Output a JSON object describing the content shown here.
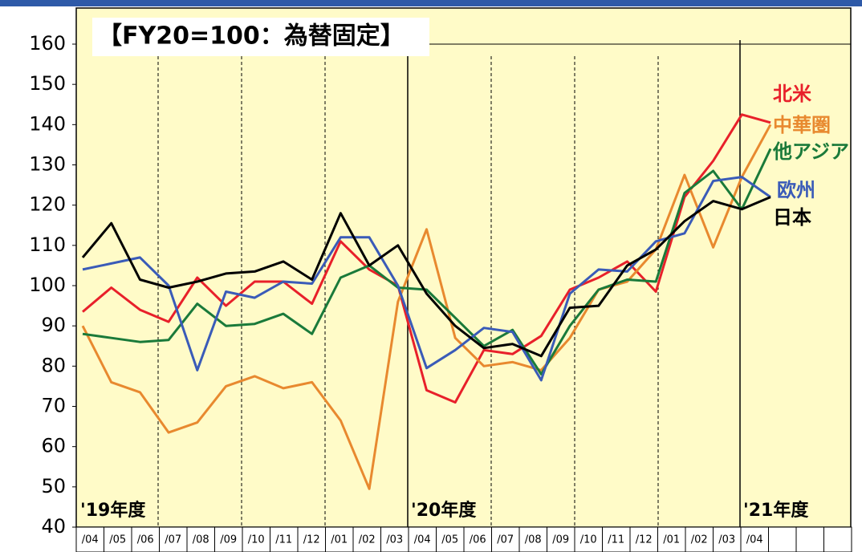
{
  "chart_data": {
    "type": "line",
    "title": "【FY20=100：為替固定】",
    "annotations": [
      "'19年度",
      "'20年度",
      "'21年度"
    ],
    "categories": [
      "/04",
      "/05",
      "/06",
      "/07",
      "/08",
      "/09",
      "/10",
      "/11",
      "/12",
      "/01",
      "/02",
      "/03",
      "/04",
      "/05",
      "/06",
      "/07",
      "/08",
      "/09",
      "/10",
      "/11",
      "/12",
      "/01",
      "/02",
      "/03",
      "/04"
    ],
    "series": [
      {
        "name": "北米",
        "color": "#e8202a",
        "values": [
          93.5,
          99.5,
          94,
          91,
          102,
          95,
          101,
          101,
          95.5,
          111,
          104,
          100,
          74,
          71,
          84,
          83,
          87.5,
          99,
          102,
          106,
          98.5,
          122,
          131,
          142.5,
          140.5
        ]
      },
      {
        "name": "中華圏",
        "color": "#e8892f",
        "values": [
          90,
          76,
          73.5,
          63.5,
          66,
          75,
          77.5,
          74.5,
          76,
          66.5,
          49.5,
          96,
          114,
          87,
          80,
          81,
          79,
          87,
          99,
          101,
          109,
          127.5,
          109.5,
          127,
          140
        ]
      },
      {
        "name": "他アジア",
        "color": "#1a7a3a",
        "values": [
          88,
          87,
          86,
          86.5,
          95.5,
          90,
          90.5,
          93,
          88,
          102,
          105,
          99.5,
          99,
          92,
          85,
          89,
          78,
          90,
          99,
          101.5,
          101,
          123,
          128.5,
          119,
          134
        ]
      },
      {
        "name": "欧州",
        "color": "#3a5bb8",
        "values": [
          104,
          105.5,
          107,
          100,
          79,
          98.5,
          97,
          101,
          100.5,
          112,
          112,
          100,
          79.5,
          84,
          89.5,
          88.5,
          76.5,
          98,
          104,
          103.5,
          111,
          113,
          126,
          127,
          122
        ]
      },
      {
        "name": "日本",
        "color": "#000000",
        "values": [
          107,
          115.5,
          101.5,
          99.5,
          101,
          103,
          103.5,
          106,
          101.5,
          118,
          105,
          110,
          98,
          90,
          84.5,
          85.5,
          82.5,
          94.5,
          95,
          105,
          109,
          116,
          121,
          119,
          122
        ]
      }
    ],
    "ylim": [
      40,
      160
    ],
    "yticks": [
      40,
      50,
      60,
      70,
      80,
      90,
      100,
      110,
      120,
      130,
      140,
      150,
      160
    ]
  }
}
